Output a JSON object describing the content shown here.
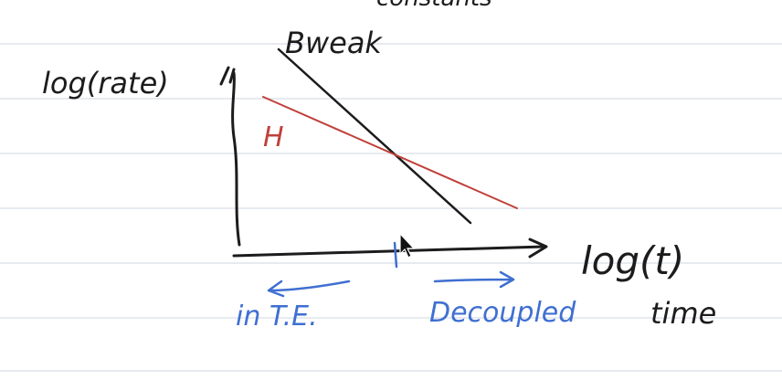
{
  "colors": {
    "paper": "#ffffff",
    "rule_line": "#dfe3ea",
    "black_ink": "#1c1c1c",
    "red_ink": "#c0403a",
    "blue_ink": "#3f6fd1"
  },
  "text": {
    "top_fragment": "constants",
    "y_axis_label": "log(rate)",
    "line_black_label": "Bweak",
    "line_red_label": "H",
    "x_axis_label": "log(t)",
    "x_axis_sublabel": "time",
    "region_left_label": "in T.E.",
    "region_right_label": "Decoupled"
  },
  "icons": {
    "cursor": "mouse-pointer-icon"
  }
}
